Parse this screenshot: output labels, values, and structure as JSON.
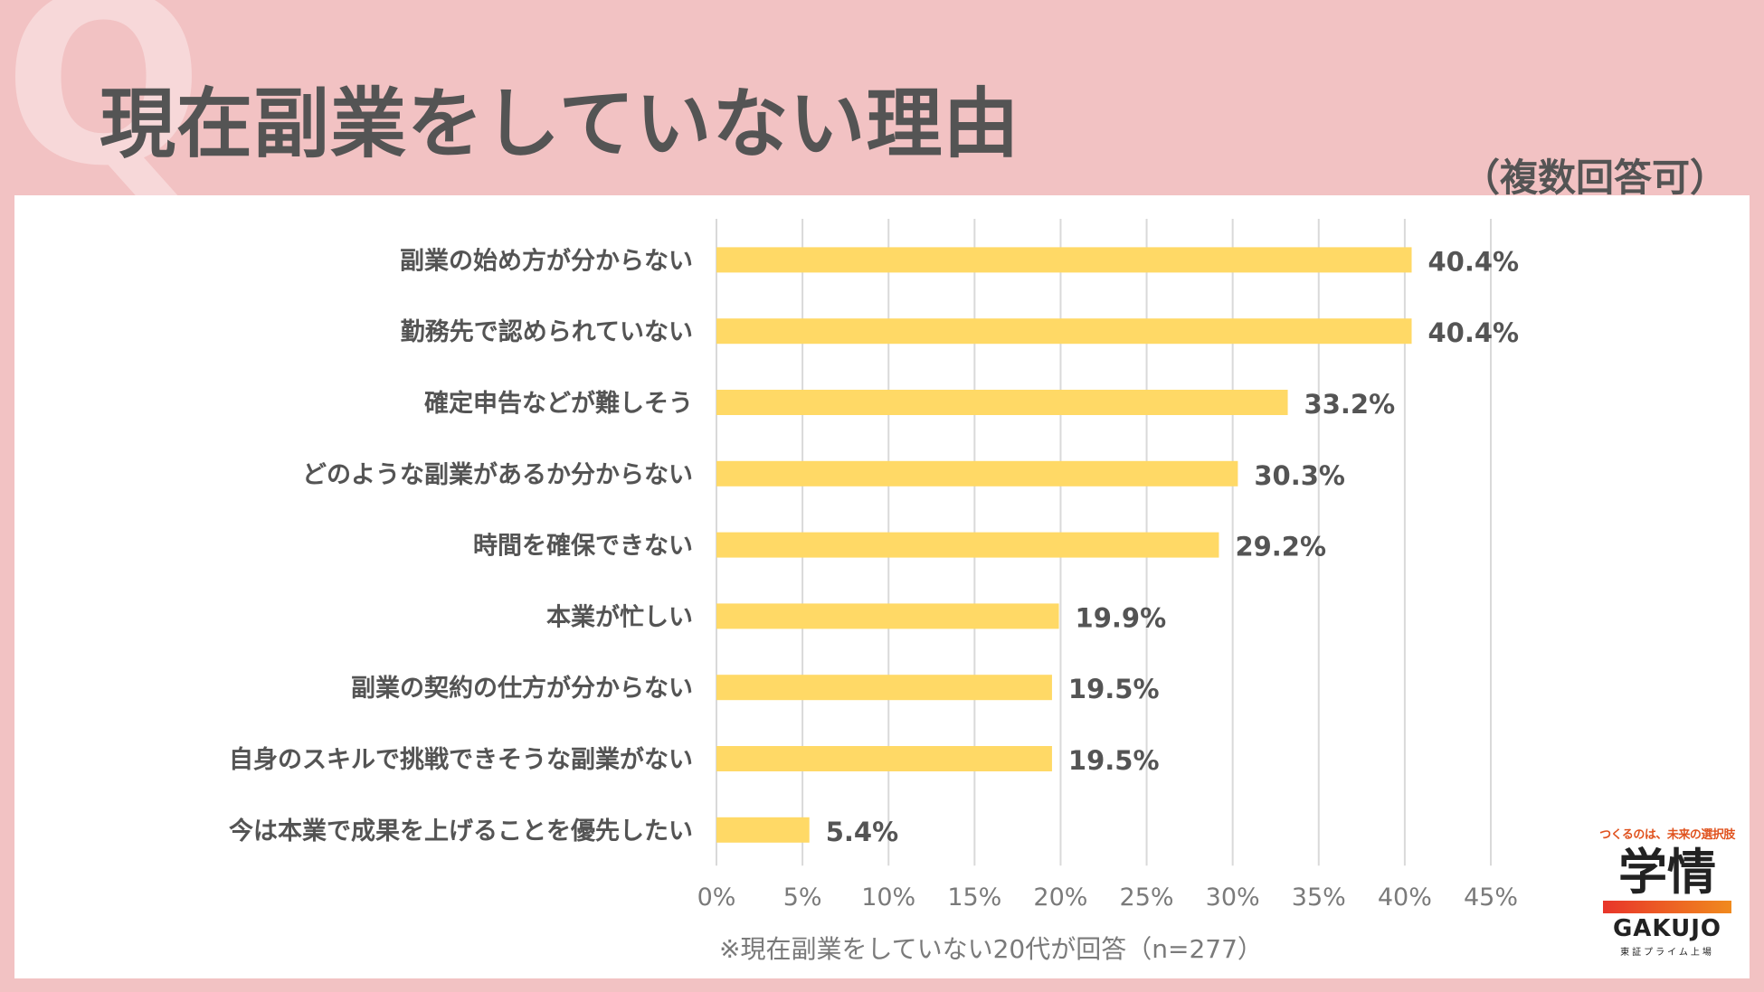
{
  "header": {
    "q_mark": "Q",
    "title": "現在副業をしていない理由",
    "subtitle": "（複数回答可）"
  },
  "footnote": "※現在副業をしていない20代が回答（n=277）",
  "logo": {
    "tagline": "つくるのは、未来の選択肢",
    "kanji": "学情",
    "english": "GAKUJO",
    "sub": "東証プライム上場"
  },
  "colors": {
    "background": "#f2c2c3",
    "bar": "#ffd966",
    "text": "#545454",
    "grid": "#d9d9d9"
  },
  "chart_data": {
    "type": "bar",
    "orientation": "horizontal",
    "categories": [
      "副業の始め方が分からない",
      "勤務先で認められていない",
      "確定申告などが難しそう",
      "どのような副業があるか分からない",
      "時間を確保できない",
      "本業が忙しい",
      "副業の契約の仕方が分からない",
      "自身のスキルで挑戦できそうな副業がない",
      "今は本業で成果を上げることを優先したい"
    ],
    "values": [
      40.4,
      40.4,
      33.2,
      30.3,
      29.2,
      19.9,
      19.5,
      19.5,
      5.4
    ],
    "value_labels": [
      "40.4%",
      "40.4%",
      "33.2%",
      "30.3%",
      "29.2%",
      "19.9%",
      "19.5%",
      "19.5%",
      "5.4%"
    ],
    "x_ticks": [
      0,
      5,
      10,
      15,
      20,
      25,
      30,
      35,
      40,
      45
    ],
    "x_tick_labels": [
      "0%",
      "5%",
      "10%",
      "15%",
      "20%",
      "25%",
      "30%",
      "35%",
      "40%",
      "45%"
    ],
    "xlim": [
      0,
      45
    ],
    "grid": true,
    "legend": false
  }
}
